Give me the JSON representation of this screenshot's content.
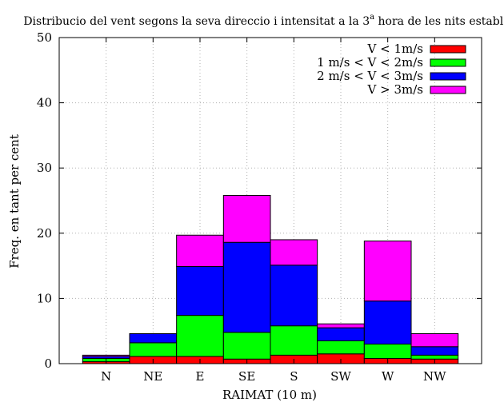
{
  "chart_data": {
    "type": "bar",
    "stacked": true,
    "title": "Distribucio del vent segons la seva direccio i intensitat a la 3",
    "title_superscript": "a",
    "title_suffix": " hora de les nits estables",
    "xlabel": "RAIMAT (10 m)",
    "ylabel": "Freq. en tant per cent",
    "ylim": [
      0,
      50
    ],
    "yticks": [
      0,
      10,
      20,
      30,
      40,
      50
    ],
    "grid": true,
    "legend_position": "top-right",
    "categories": [
      "N",
      "NE",
      "E",
      "SE",
      "S",
      "SW",
      "W",
      "NW"
    ],
    "series": [
      {
        "name": "V < 1m/s",
        "color": "#ff0000",
        "values": [
          0.3,
          1.1,
          1.1,
          0.7,
          1.3,
          1.5,
          0.8,
          0.7
        ]
      },
      {
        "name": "1 m/s < V < 2m/s",
        "color": "#00ff00",
        "values": [
          0.5,
          2.1,
          6.3,
          4.1,
          4.5,
          2.0,
          2.2,
          0.6
        ]
      },
      {
        "name": "2 m/s < V < 3m/s",
        "color": "#0000ff",
        "values": [
          0.3,
          1.4,
          7.5,
          13.8,
          9.3,
          2.0,
          6.6,
          1.3
        ]
      },
      {
        "name": "V > 3m/s",
        "color": "#ff00ff",
        "values": [
          0.2,
          0.0,
          4.8,
          7.2,
          3.9,
          0.6,
          9.2,
          2.0
        ]
      }
    ]
  }
}
